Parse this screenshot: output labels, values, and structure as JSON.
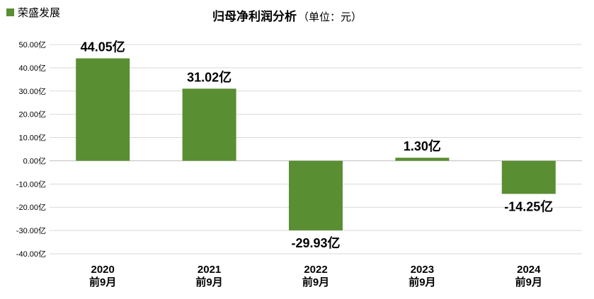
{
  "chart_data": {
    "type": "bar",
    "title": "归母净利润分析",
    "subtitle": "（单位：元）",
    "legend": {
      "label": "荣盛发展",
      "position": "top-left"
    },
    "categories": [
      [
        "2020",
        "前9月"
      ],
      [
        "2021",
        "前9月"
      ],
      [
        "2022",
        "前9月"
      ],
      [
        "2023",
        "前9月"
      ],
      [
        "2024",
        "前9月"
      ]
    ],
    "values": [
      44.05,
      31.02,
      -29.93,
      1.3,
      -14.25
    ],
    "data_labels": [
      "44.05亿",
      "31.02亿",
      "-29.93亿",
      "1.30亿",
      "-14.25亿"
    ],
    "y_ticks": [
      50,
      40,
      30,
      20,
      10,
      0,
      -10,
      -20,
      -30,
      -40
    ],
    "y_tick_labels": [
      "50.00亿",
      "40.00亿",
      "30.00亿",
      "20.00亿",
      "10.00亿",
      "0.00亿",
      "-10.00亿",
      "-20.00亿",
      "-30.00亿",
      "-40.00亿"
    ],
    "ylim": [
      -40,
      50
    ],
    "grid": true,
    "colors": {
      "bar": "#5a8e32",
      "grid": "#d9d9d9",
      "axis": "#bfbfbf"
    }
  }
}
